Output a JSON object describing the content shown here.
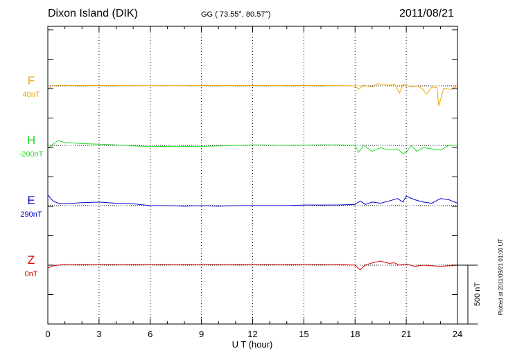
{
  "header": {
    "station": "Dixon Island (DIK)",
    "coords": "GG ( 73.55°,  80.57°)",
    "date": "2011/08/21"
  },
  "plotted_note": "Plotted at 2011/09/21 01:00 UT",
  "colors": {
    "F": "#f2a500",
    "H": "#22dd22",
    "E": "#0000cc",
    "Z": "#dd0000"
  },
  "chart_data": {
    "type": "line",
    "xlabel": "U T (hour)",
    "xlim": [
      0,
      24
    ],
    "xticks": [
      0,
      3,
      6,
      9,
      12,
      15,
      18,
      21,
      24
    ],
    "scale_bar": "500 nT",
    "series": [
      {
        "name": "F",
        "baseline_label": "40nT",
        "x": [
          0,
          0.3,
          0.6,
          1,
          2,
          3,
          4,
          5,
          6,
          7,
          8,
          9,
          10,
          11,
          12,
          13,
          14,
          15,
          16,
          17,
          18,
          18.2,
          18.5,
          19,
          19.3,
          19.6,
          20,
          20.3,
          20.6,
          20.8,
          21,
          21.3,
          21.6,
          21.9,
          22.2,
          22.5,
          22.8,
          22.9,
          23.2,
          23.6,
          24
        ],
        "y": [
          -25,
          0,
          5,
          5,
          3,
          3,
          3,
          2,
          2,
          2,
          2,
          3,
          3,
          3,
          3,
          3,
          3,
          3,
          3,
          2,
          0,
          -30,
          5,
          -10,
          20,
          10,
          5,
          15,
          -60,
          10,
          5,
          -10,
          0,
          -20,
          -70,
          -10,
          -15,
          -170,
          -20,
          -30,
          0
        ]
      },
      {
        "name": "H",
        "baseline_label": "-200nT",
        "x": [
          0,
          0.3,
          0.6,
          1,
          2,
          3,
          4,
          5,
          6,
          7,
          8,
          9,
          10,
          11,
          12,
          13,
          14,
          15,
          16,
          17,
          18,
          18.2,
          18.5,
          19,
          19.5,
          20,
          20.5,
          20.8,
          21,
          21.3,
          21.6,
          22,
          22.5,
          23,
          23.5,
          24
        ],
        "y": [
          -25,
          10,
          40,
          25,
          15,
          10,
          5,
          -5,
          -10,
          -8,
          -8,
          -8,
          -5,
          0,
          5,
          3,
          2,
          3,
          5,
          5,
          2,
          -60,
          0,
          -50,
          -20,
          -40,
          -30,
          -70,
          -60,
          0,
          -50,
          -20,
          -30,
          -40,
          0,
          0
        ]
      },
      {
        "name": "E",
        "baseline_label": "290nT",
        "x": [
          0,
          0.3,
          0.6,
          1,
          2,
          3,
          4,
          5,
          6,
          7,
          8,
          9,
          10,
          11,
          12,
          13,
          14,
          15,
          16,
          17,
          18,
          18.3,
          18.6,
          19,
          19.5,
          20,
          20.5,
          20.8,
          21,
          21.5,
          22,
          22.5,
          23,
          23.5,
          24
        ],
        "y": [
          90,
          40,
          20,
          15,
          25,
          30,
          20,
          15,
          0,
          0,
          -5,
          0,
          -5,
          0,
          0,
          0,
          0,
          5,
          5,
          5,
          10,
          40,
          10,
          30,
          20,
          40,
          60,
          30,
          80,
          50,
          30,
          20,
          60,
          50,
          20
        ]
      },
      {
        "name": "Z",
        "baseline_label": "0nT",
        "x": [
          0,
          0.3,
          0.6,
          1,
          2,
          3,
          4,
          5,
          6,
          7,
          8,
          9,
          10,
          11,
          12,
          13,
          14,
          15,
          16,
          17,
          18,
          18.3,
          18.6,
          19,
          19.5,
          20,
          20.3,
          20.6,
          21,
          21.5,
          22,
          22.5,
          23,
          23.5,
          24
        ],
        "y": [
          -25,
          -5,
          0,
          5,
          5,
          5,
          5,
          5,
          5,
          5,
          5,
          5,
          5,
          5,
          5,
          5,
          5,
          5,
          5,
          5,
          0,
          -40,
          0,
          20,
          35,
          15,
          20,
          0,
          10,
          -10,
          0,
          -5,
          -10,
          -5,
          0
        ]
      }
    ]
  }
}
